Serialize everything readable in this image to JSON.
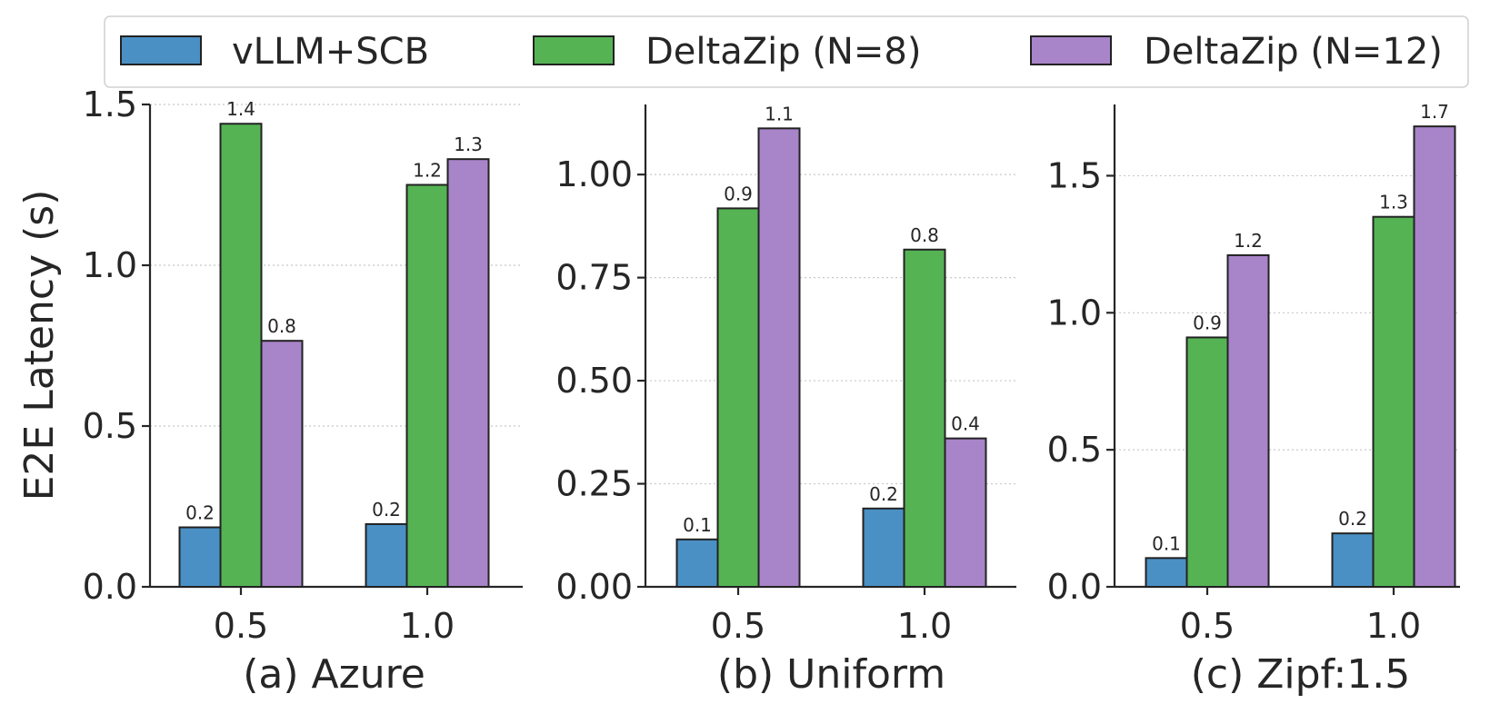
{
  "legend": {
    "items": [
      {
        "label": "vLLM+SCB",
        "color": "#4a90c4"
      },
      {
        "label": "DeltaZip (N=8)",
        "color": "#55b354"
      },
      {
        "label": "DeltaZip (N=12)",
        "color": "#a884c9"
      }
    ]
  },
  "chart_data": [
    {
      "type": "bar",
      "title": "(a) Azure",
      "ylabel": "E2E Latency (s)",
      "categories": [
        "0.5",
        "1.0"
      ],
      "ylim": [
        0,
        1.5
      ],
      "yticks": [
        "0.0",
        "0.5",
        "1.0",
        "1.5"
      ],
      "ytick_values": [
        0,
        0.5,
        1.0,
        1.5
      ],
      "series": [
        {
          "name": "vLLM+SCB",
          "values": [
            0.185,
            0.195
          ],
          "labels": [
            "0.2",
            "0.2"
          ]
        },
        {
          "name": "DeltaZip (N=8)",
          "values": [
            1.44,
            1.25
          ],
          "labels": [
            "1.4",
            "1.2"
          ]
        },
        {
          "name": "DeltaZip (N=12)",
          "values": [
            0.765,
            1.33
          ],
          "labels": [
            "0.8",
            "1.3"
          ]
        }
      ]
    },
    {
      "type": "bar",
      "title": "(b) Uniform",
      "ylabel": "",
      "categories": [
        "0.5",
        "1.0"
      ],
      "ylim": [
        0,
        1.17
      ],
      "yticks": [
        "0.00",
        "0.25",
        "0.50",
        "0.75",
        "1.00"
      ],
      "ytick_values": [
        0,
        0.25,
        0.5,
        0.75,
        1.0
      ],
      "series": [
        {
          "name": "vLLM+SCB",
          "values": [
            0.115,
            0.19
          ],
          "labels": [
            "0.1",
            "0.2"
          ]
        },
        {
          "name": "DeltaZip (N=8)",
          "values": [
            0.918,
            0.818
          ],
          "labels": [
            "0.9",
            "0.8"
          ]
        },
        {
          "name": "DeltaZip (N=12)",
          "values": [
            1.112,
            0.36
          ],
          "labels": [
            "1.1",
            "0.4"
          ]
        }
      ]
    },
    {
      "type": "bar",
      "title": "(c) Zipf:1.5",
      "ylabel": "",
      "categories": [
        "0.5",
        "1.0"
      ],
      "ylim": [
        0,
        1.76
      ],
      "yticks": [
        "0.0",
        "0.5",
        "1.0",
        "1.5"
      ],
      "ytick_values": [
        0,
        0.5,
        1.0,
        1.5
      ],
      "series": [
        {
          "name": "vLLM+SCB",
          "values": [
            0.105,
            0.195
          ],
          "labels": [
            "0.1",
            "0.2"
          ]
        },
        {
          "name": "DeltaZip (N=8)",
          "values": [
            0.91,
            1.35
          ],
          "labels": [
            "0.9",
            "1.3"
          ]
        },
        {
          "name": "DeltaZip (N=12)",
          "values": [
            1.21,
            1.68
          ],
          "labels": [
            "1.2",
            "1.7"
          ]
        }
      ]
    }
  ]
}
